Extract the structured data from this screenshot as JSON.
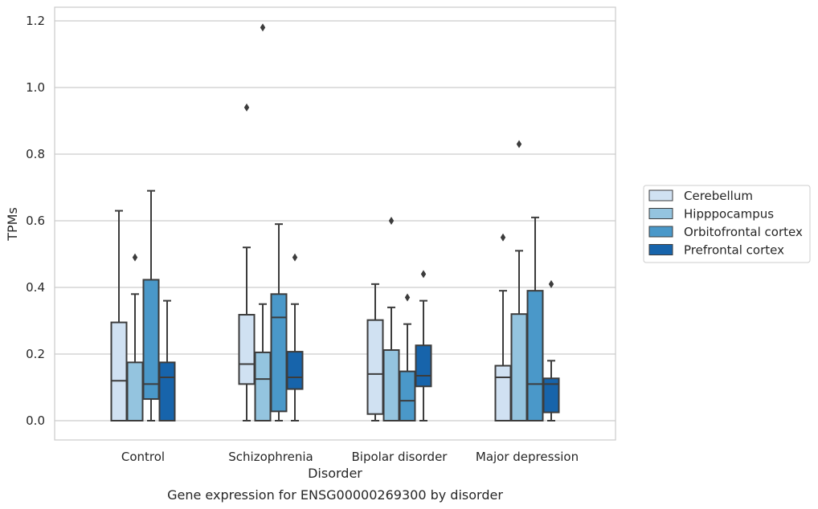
{
  "chart_data": {
    "type": "box",
    "title": "",
    "caption": "Gene expression for ENSG00000269300 by disorder",
    "xlabel": "Disorder",
    "ylabel": "TPMs",
    "ylim": [
      -0.055,
      1.24
    ],
    "yticks": [
      0.0,
      0.2,
      0.4,
      0.6,
      0.8,
      1.0,
      1.2
    ],
    "ytick_labels": [
      "0.0",
      "0.2",
      "0.4",
      "0.6",
      "0.8",
      "1.0",
      "1.2"
    ],
    "grid": "horizontal",
    "legend_position": "right",
    "categories": [
      "Control",
      "Schizophrenia",
      "Bipolar disorder",
      "Major depression"
    ],
    "series": [
      {
        "name": "Cerebellum",
        "color": "#d0e1f2",
        "boxes": [
          {
            "whislo": 0.0,
            "q1": 0.0,
            "median": 0.12,
            "q3": 0.295,
            "whishi": 0.63,
            "fliers": []
          },
          {
            "whislo": 0.0,
            "q1": 0.11,
            "median": 0.17,
            "q3": 0.318,
            "whishi": 0.52,
            "fliers": [
              0.94
            ]
          },
          {
            "whislo": 0.0,
            "q1": 0.02,
            "median": 0.14,
            "q3": 0.302,
            "whishi": 0.41,
            "fliers": []
          },
          {
            "whislo": 0.0,
            "q1": 0.0,
            "median": 0.13,
            "q3": 0.165,
            "whishi": 0.39,
            "fliers": [
              0.55
            ]
          }
        ]
      },
      {
        "name": "Hipppocampus",
        "color": "#94c4df",
        "boxes": [
          {
            "whislo": 0.0,
            "q1": 0.0,
            "median": 0.0,
            "q3": 0.175,
            "whishi": 0.38,
            "fliers": [
              0.49
            ]
          },
          {
            "whislo": 0.0,
            "q1": 0.0,
            "median": 0.125,
            "q3": 0.205,
            "whishi": 0.35,
            "fliers": [
              1.18
            ]
          },
          {
            "whislo": 0.0,
            "q1": 0.0,
            "median": 0.0,
            "q3": 0.212,
            "whishi": 0.34,
            "fliers": [
              0.6
            ]
          },
          {
            "whislo": 0.0,
            "q1": 0.0,
            "median": 0.0,
            "q3": 0.32,
            "whishi": 0.51,
            "fliers": [
              0.83
            ]
          }
        ]
      },
      {
        "name": "Orbitofrontal cortex",
        "color": "#4a98c9",
        "boxes": [
          {
            "whislo": 0.0,
            "q1": 0.065,
            "median": 0.11,
            "q3": 0.423,
            "whishi": 0.69,
            "fliers": []
          },
          {
            "whislo": 0.0,
            "q1": 0.028,
            "median": 0.31,
            "q3": 0.38,
            "whishi": 0.59,
            "fliers": []
          },
          {
            "whislo": 0.0,
            "q1": 0.0,
            "median": 0.06,
            "q3": 0.148,
            "whishi": 0.29,
            "fliers": [
              0.37
            ]
          },
          {
            "whislo": 0.0,
            "q1": 0.0,
            "median": 0.11,
            "q3": 0.39,
            "whishi": 0.61,
            "fliers": []
          }
        ]
      },
      {
        "name": "Prefrontal cortex",
        "color": "#1764ab",
        "boxes": [
          {
            "whislo": 0.0,
            "q1": 0.0,
            "median": 0.13,
            "q3": 0.175,
            "whishi": 0.36,
            "fliers": []
          },
          {
            "whislo": 0.0,
            "q1": 0.095,
            "median": 0.13,
            "q3": 0.207,
            "whishi": 0.35,
            "fliers": [
              0.49
            ]
          },
          {
            "whislo": 0.0,
            "q1": 0.103,
            "median": 0.135,
            "q3": 0.226,
            "whishi": 0.36,
            "fliers": [
              0.44
            ]
          },
          {
            "whislo": 0.0,
            "q1": 0.025,
            "median": 0.11,
            "q3": 0.127,
            "whishi": 0.18,
            "fliers": [
              0.41
            ]
          }
        ]
      }
    ]
  }
}
